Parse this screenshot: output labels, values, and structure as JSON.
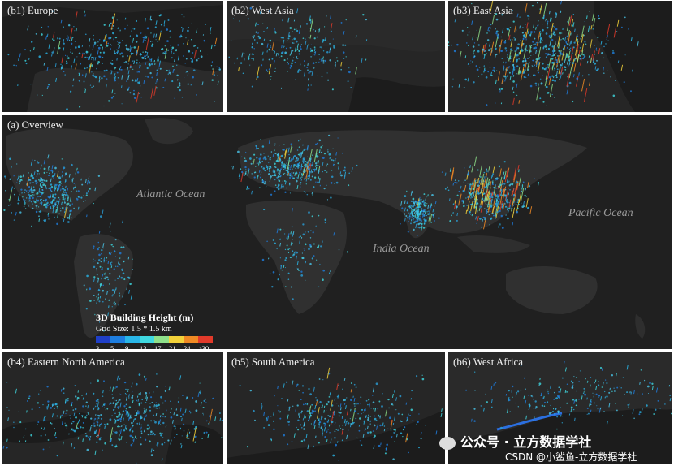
{
  "panels": {
    "b1": {
      "label": "(b1) Europe"
    },
    "b2": {
      "label": "(b2) West Asia"
    },
    "b3": {
      "label": "(b3) East Asia"
    },
    "a": {
      "label": "(a) Overview"
    },
    "b4": {
      "label": "(b4) Eastern North America"
    },
    "b5": {
      "label": "(b5) South America"
    },
    "b6": {
      "label": "(b6) West Africa"
    }
  },
  "oceans": {
    "atlantic": "Atlantic Ocean",
    "pacific": "Pacific Ocean",
    "india": "India Ocean"
  },
  "legend": {
    "title": "3D Building Height (m)",
    "subtitle": "Grid Size: 1.5 * 1.5 km",
    "colors": [
      "#1f3fc8",
      "#1e7ee0",
      "#29b6e8",
      "#3fd8e0",
      "#8ee08a",
      "#f3d23a",
      "#f08a24",
      "#e23a2a"
    ],
    "ticks": [
      "3",
      "5",
      "9",
      "13",
      "17",
      "21",
      "24",
      "≥30"
    ]
  },
  "watermark": {
    "wechat": "公众号 · 立方数据学社",
    "csdn": "CSDN @小鲨鱼-立方数据学社"
  }
}
